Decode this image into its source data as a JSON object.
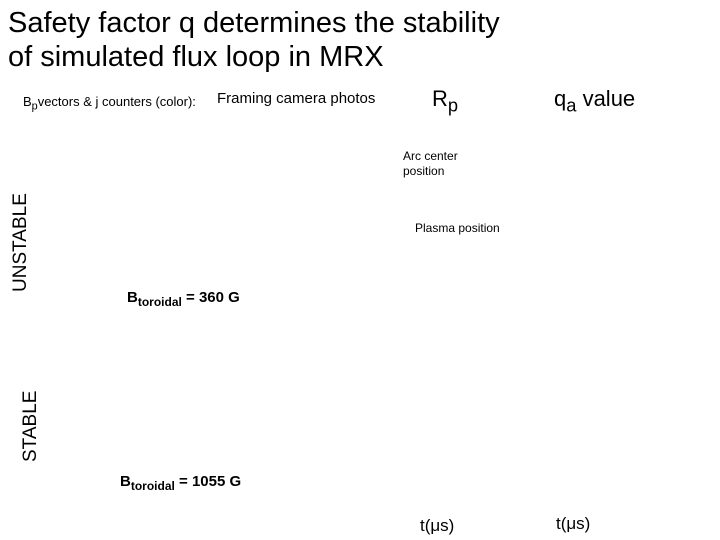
{
  "title": {
    "line1": "Safety factor q determines the stability",
    "line2": "of simulated flux loop in MRX"
  },
  "header_labels": {
    "bp_prefix": "B",
    "bp_sub": "p",
    "bp_rest": "vectors & j counters (color):",
    "camera": "Framing camera photos",
    "rp": "R",
    "rp_sub": "p",
    "qa": "q",
    "qa_sub": "a",
    "qa_rest": " value"
  },
  "row_labels": {
    "unstable": "UNSTABLE",
    "stable": "STABLE"
  },
  "annotations": {
    "arc_center": "Arc center position",
    "plasma_position": "Plasma position"
  },
  "field_labels": {
    "b_prefix": "B",
    "b_sub": "toroidal",
    "unstable_value": " = 360 G",
    "stable_value": " = 1055 G"
  },
  "axes": {
    "t_label_rp": "t(μs)",
    "t_label_qa": "t(μs)"
  }
}
